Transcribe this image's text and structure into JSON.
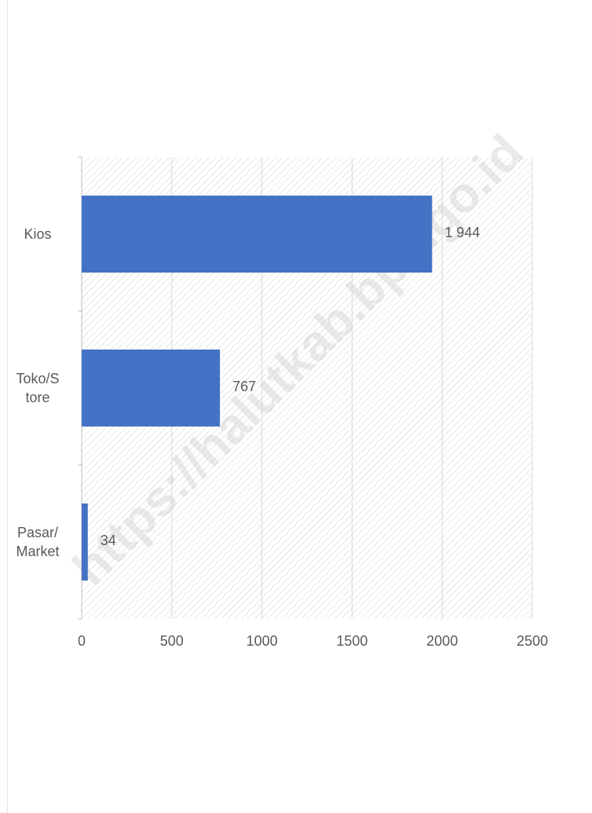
{
  "watermark": "https://halutkab.bps.go.id",
  "colors": {
    "bar": "#4472C4",
    "text": "#595959",
    "grid": "#d9d9d9"
  },
  "chart_data": {
    "type": "bar",
    "orientation": "horizontal",
    "categories": [
      "Kios",
      "Toko/S\ntore",
      "Pasar/\nMarket"
    ],
    "values": [
      1944,
      767,
      34
    ],
    "value_labels": [
      "1 944",
      "767",
      "34"
    ],
    "xlim": [
      0,
      2500
    ],
    "xticks": [
      "0",
      "500",
      "1000",
      "1500",
      "2000",
      "2500"
    ],
    "grid": true,
    "background_pattern": "diagonal-hatch"
  }
}
